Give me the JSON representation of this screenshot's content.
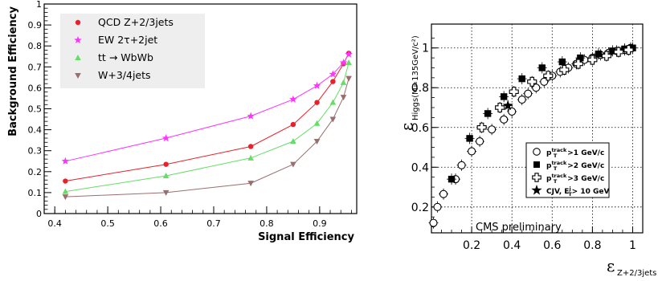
{
  "chart_data": [
    {
      "type": "line",
      "title": "",
      "xlabel": "Signal Efficiency",
      "ylabel": "Background Efficiency",
      "xlim": [
        0.38,
        0.97
      ],
      "ylim": [
        0,
        1.0
      ],
      "xticks": [
        "0.4",
        "0.5",
        "0.6",
        "0.7",
        "0.8",
        "0.9"
      ],
      "yticks": [
        "0",
        "0.1",
        "0.2",
        "0.3",
        "0.4",
        "0.5",
        "0.6",
        "0.7",
        "0.8",
        "0.9",
        "1"
      ],
      "grid": false,
      "legend_position": "top-left",
      "series": [
        {
          "name": "QCD Z+2/3jets",
          "color": "#e8202a",
          "marker": "circle",
          "points": [
            [
              0.42,
              0.155
            ],
            [
              0.61,
              0.235
            ],
            [
              0.77,
              0.32
            ],
            [
              0.85,
              0.425
            ],
            [
              0.895,
              0.53
            ],
            [
              0.925,
              0.63
            ],
            [
              0.945,
              0.715
            ],
            [
              0.955,
              0.765
            ]
          ]
        },
        {
          "name": "EW 2τ+2jet",
          "color": "#ff33ff",
          "marker": "star",
          "points": [
            [
              0.42,
              0.25
            ],
            [
              0.61,
              0.36
            ],
            [
              0.77,
              0.465
            ],
            [
              0.85,
              0.545
            ],
            [
              0.895,
              0.61
            ],
            [
              0.925,
              0.665
            ],
            [
              0.945,
              0.72
            ],
            [
              0.955,
              0.76
            ]
          ]
        },
        {
          "name_parts": [
            "tt",
            "→",
            "WbWb"
          ],
          "color": "#66dd66",
          "marker": "triangle-up",
          "points": [
            [
              0.42,
              0.105
            ],
            [
              0.61,
              0.18
            ],
            [
              0.77,
              0.265
            ],
            [
              0.85,
              0.345
            ],
            [
              0.895,
              0.43
            ],
            [
              0.925,
              0.53
            ],
            [
              0.945,
              0.625
            ],
            [
              0.955,
              0.72
            ]
          ]
        },
        {
          "name": "W+3/4jets",
          "color": "#9a6e6e",
          "marker": "triangle-down",
          "points": [
            [
              0.42,
              0.08
            ],
            [
              0.61,
              0.1
            ],
            [
              0.77,
              0.145
            ],
            [
              0.85,
              0.235
            ],
            [
              0.895,
              0.345
            ],
            [
              0.925,
              0.45
            ],
            [
              0.945,
              0.555
            ],
            [
              0.955,
              0.645
            ]
          ]
        }
      ]
    },
    {
      "type": "scatter",
      "title": "",
      "xlabel_symbol": "ε",
      "xlabel_sub": "Z+2/3jets",
      "ylabel_symbol": "ε",
      "ylabel_sub": "Higgs(M=135GeV/c²)",
      "xlim": [
        0,
        1.05
      ],
      "ylim": [
        0.07,
        1.12
      ],
      "xticks": [
        "0.2",
        "0.4",
        "0.6",
        "0.8",
        "1"
      ],
      "yticks": [
        "0.2",
        "0.4",
        "0.6",
        "0.8",
        "1"
      ],
      "grid": true,
      "annotation": "CMS preliminary",
      "legend_position": "bottom-right",
      "legend": [
        {
          "marker": "open-circle",
          "label_pre": "p",
          "label_sup": "track",
          "label_sub": "T",
          "label_post": ">1 GeV/c"
        },
        {
          "marker": "filled-square",
          "label_pre": "p",
          "label_sup": "track",
          "label_sub": "T",
          "label_post": ">2 GeV/c"
        },
        {
          "marker": "open-cross",
          "label_pre": "p",
          "label_sup": "track",
          "label_sub": "T",
          "label_post": ">3 GeV/c"
        },
        {
          "marker": "star",
          "label_pre": "CJV, E",
          "label_sup": "j",
          "label_sub": "T",
          "label_post": "> 10 GeV"
        }
      ],
      "series": [
        {
          "marker": "open-circle",
          "points": [
            [
              0.01,
              0.12
            ],
            [
              0.03,
              0.2
            ],
            [
              0.06,
              0.265
            ],
            [
              0.12,
              0.34
            ],
            [
              0.15,
              0.41
            ],
            [
              0.2,
              0.48
            ],
            [
              0.24,
              0.53
            ],
            [
              0.3,
              0.59
            ],
            [
              0.36,
              0.64
            ],
            [
              0.4,
              0.68
            ],
            [
              0.45,
              0.74
            ],
            [
              0.48,
              0.77
            ],
            [
              0.52,
              0.8
            ],
            [
              0.56,
              0.83
            ],
            [
              0.6,
              0.86
            ],
            [
              0.64,
              0.88
            ],
            [
              0.68,
              0.9
            ],
            [
              0.72,
              0.92
            ],
            [
              0.76,
              0.94
            ],
            [
              0.8,
              0.95
            ],
            [
              0.84,
              0.965
            ],
            [
              0.88,
              0.975
            ],
            [
              0.92,
              0.985
            ],
            [
              0.96,
              0.99
            ],
            [
              0.99,
              1.0
            ]
          ]
        },
        {
          "marker": "filled-square",
          "points": [
            [
              0.1,
              0.34
            ],
            [
              0.19,
              0.545
            ],
            [
              0.28,
              0.67
            ],
            [
              0.36,
              0.755
            ],
            [
              0.45,
              0.845
            ],
            [
              0.55,
              0.9
            ],
            [
              0.65,
              0.93
            ],
            [
              0.74,
              0.95
            ],
            [
              0.83,
              0.97
            ],
            [
              0.9,
              0.985
            ],
            [
              0.96,
              0.995
            ],
            [
              1.0,
              1.0
            ]
          ]
        },
        {
          "marker": "open-cross",
          "points": [
            [
              0.25,
              0.6
            ],
            [
              0.34,
              0.7
            ],
            [
              0.41,
              0.78
            ],
            [
              0.5,
              0.83
            ],
            [
              0.58,
              0.86
            ],
            [
              0.66,
              0.89
            ],
            [
              0.73,
              0.92
            ],
            [
              0.8,
              0.94
            ],
            [
              0.87,
              0.96
            ],
            [
              0.93,
              0.98
            ],
            [
              0.98,
              0.99
            ]
          ]
        },
        {
          "marker": "star",
          "points": [
            [
              0.38,
              0.71
            ]
          ]
        }
      ]
    }
  ],
  "colors": {
    "panel_bg": "#ffffff",
    "legend_bg": "#eeeeee",
    "axis": "#000000"
  }
}
